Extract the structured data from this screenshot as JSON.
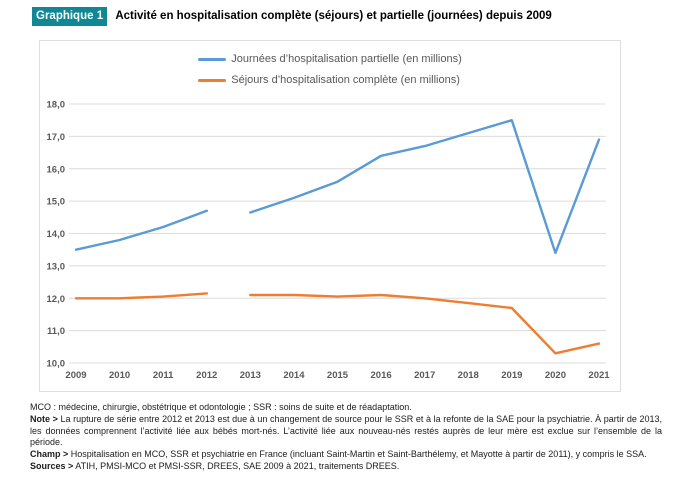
{
  "header": {
    "badge": "Graphique 1",
    "badge_color": "#0f8795",
    "title": "Activité en hospitalisation complète (séjours) et partielle (journées) depuis 2009"
  },
  "chart_data": {
    "type": "line",
    "x": [
      "2009",
      "2010",
      "2011",
      "2012",
      "2013",
      "2014",
      "2015",
      "2016",
      "2017",
      "2018",
      "2019",
      "2020",
      "2021"
    ],
    "series": [
      {
        "name": "Journées d’hospitalisation partielle (en millions)",
        "color": "#5B9BD5",
        "values": [
          13.5,
          13.8,
          14.2,
          14.7,
          14.65,
          15.1,
          15.6,
          16.4,
          16.7,
          17.1,
          17.5,
          13.4,
          16.9
        ]
      },
      {
        "name": "Séjours d’hospitalisation complète (en millions)",
        "color": "#ED7D31",
        "values": [
          12.0,
          12.0,
          12.05,
          12.15,
          12.1,
          12.1,
          12.05,
          12.1,
          12.0,
          11.85,
          11.7,
          10.3,
          10.6
        ]
      }
    ],
    "break_between": [
      "2012",
      "2013"
    ],
    "ylim": [
      10.0,
      18.0
    ],
    "ytick_labels": [
      "18,0",
      "17,0",
      "16,0",
      "15,0",
      "14,0",
      "13,0",
      "12,0",
      "11,0",
      "10,0"
    ],
    "grid": true,
    "gridline_color": "#dcdcdc",
    "axis_label_color": "#595959",
    "legend_position": "top-center"
  },
  "footnotes": {
    "mco": "MCO : médecine, chirurgie, obstétrique et odontologie ; SSR : soins de suite et de réadaptation.",
    "note_label": "Note >",
    "note_text": " La rupture de série entre 2012 et 2013 est due à un changement de source pour le SSR et à la refonte de la SAE pour la psychiatrie. À partir de 2013, les données comprennent l’activité liée aux bébés mort-nés. L’activité liée aux nouveau-nés restés auprès de leur mère est exclue sur l’ensemble de la période.",
    "champ_label": "Champ >",
    "champ_text": " Hospitalisation en MCO, SSR et psychiatrie en France (incluant Saint-Martin et Saint-Barthélemy, et Mayotte à partir de 2011), y compris le SSA.",
    "sources_label": "Sources >",
    "sources_text": " ATIH, PMSI-MCO et PMSI-SSR, DREES, SAE 2009 à 2021, traitements DREES."
  }
}
